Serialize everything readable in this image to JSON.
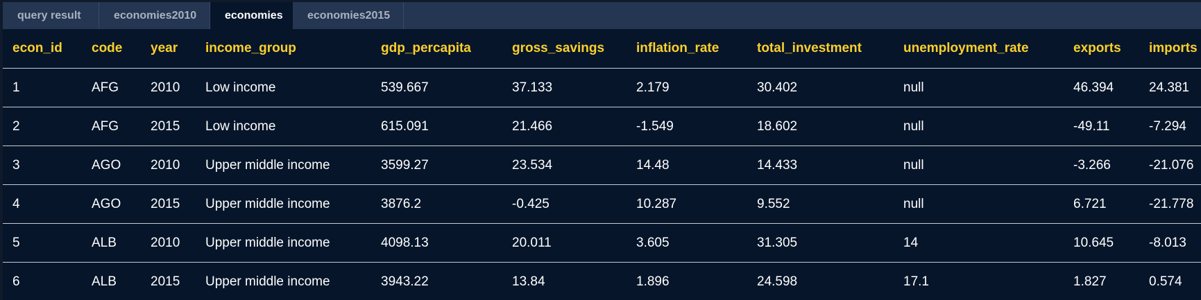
{
  "tabs": [
    {
      "label": "query result"
    },
    {
      "label": "economies2010"
    },
    {
      "label": "economies"
    },
    {
      "label": "economies2015"
    }
  ],
  "table": {
    "columns": [
      "econ_id",
      "code",
      "year",
      "income_group",
      "gdp_percapita",
      "gross_savings",
      "inflation_rate",
      "total_investment",
      "unemployment_rate",
      "exports",
      "imports"
    ],
    "rows": [
      [
        "1",
        "AFG",
        "2010",
        "Low income",
        "539.667",
        "37.133",
        "2.179",
        "30.402",
        "null",
        "46.394",
        "24.381"
      ],
      [
        "2",
        "AFG",
        "2015",
        "Low income",
        "615.091",
        "21.466",
        "-1.549",
        "18.602",
        "null",
        "-49.11",
        "-7.294"
      ],
      [
        "3",
        "AGO",
        "2010",
        "Upper middle income",
        "3599.27",
        "23.534",
        "14.48",
        "14.433",
        "null",
        "-3.266",
        "-21.076"
      ],
      [
        "4",
        "AGO",
        "2015",
        "Upper middle income",
        "3876.2",
        "-0.425",
        "10.287",
        "9.552",
        "null",
        "6.721",
        "-21.778"
      ],
      [
        "5",
        "ALB",
        "2010",
        "Upper middle income",
        "4098.13",
        "20.011",
        "3.605",
        "31.305",
        "14",
        "10.645",
        "-8.013"
      ],
      [
        "6",
        "ALB",
        "2015",
        "Upper middle income",
        "3943.22",
        "13.84",
        "1.896",
        "24.598",
        "17.1",
        "1.827",
        "0.574"
      ]
    ]
  },
  "colors": {
    "header_text": "#fbd02c",
    "cell_text": "#ffffff",
    "background": "#06152a",
    "tabbar": "#243651"
  }
}
